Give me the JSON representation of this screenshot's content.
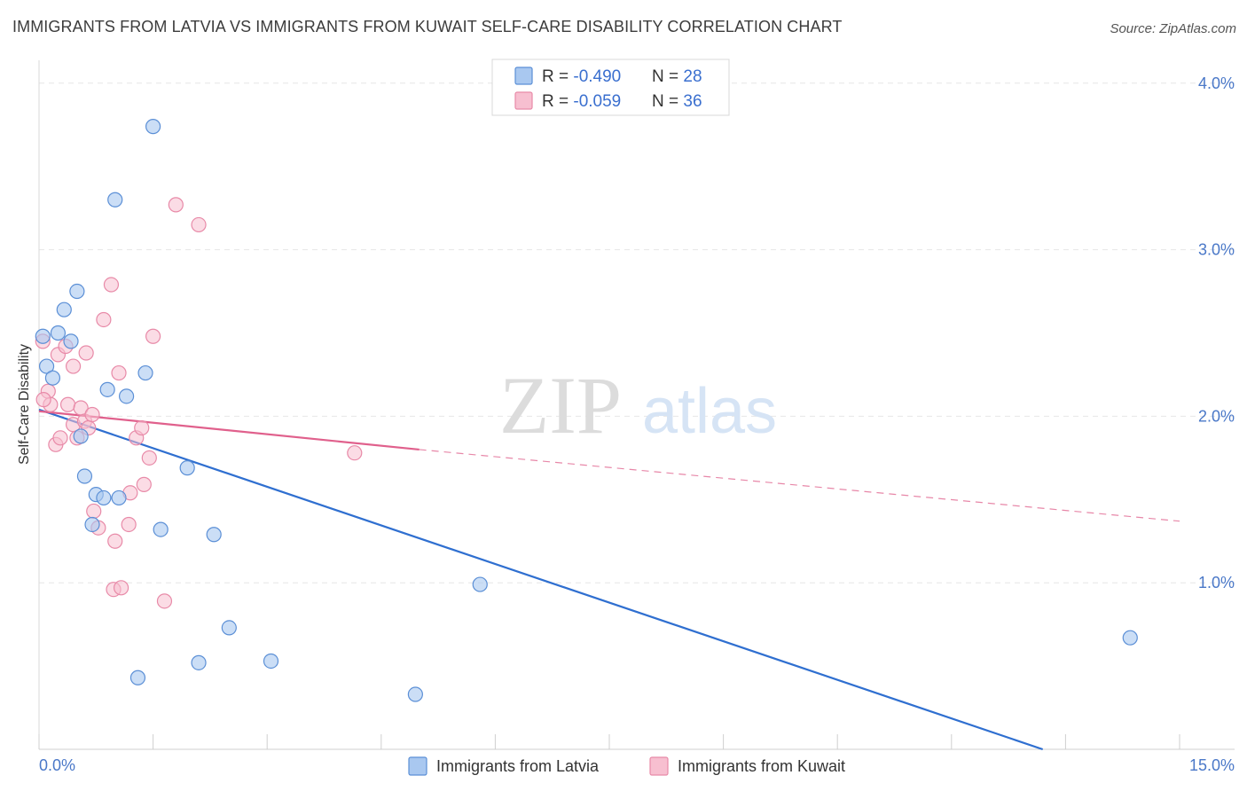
{
  "title": "IMMIGRANTS FROM LATVIA VS IMMIGRANTS FROM KUWAIT SELF-CARE DISABILITY CORRELATION CHART",
  "source": "Source: ZipAtlas.com",
  "watermark": {
    "zip": "ZIP",
    "atlas": "atlas"
  },
  "colors": {
    "latvia_fill": "#a9c8f0",
    "latvia_stroke": "#5b8fd6",
    "latvia_line": "#2f6fd0",
    "kuwait_fill": "#f7bfd0",
    "kuwait_stroke": "#e88aa8",
    "kuwait_line": "#e0608c",
    "tick_text": "#4a78c8",
    "grid": "#e6e6e6"
  },
  "legend": {
    "rows": [
      {
        "r_label": "R = ",
        "r_value": "-0.490",
        "n_label": "N = ",
        "n_value": "28"
      },
      {
        "r_label": "R = ",
        "r_value": "-0.059",
        "n_label": "N = ",
        "n_value": "36"
      }
    ]
  },
  "chart_data": {
    "type": "scatter",
    "title": "IMMIGRANTS FROM LATVIA VS IMMIGRANTS FROM KUWAIT SELF-CARE DISABILITY CORRELATION CHART",
    "xlabel": "",
    "ylabel": "Self-Care Disability",
    "xlim": [
      0,
      15
    ],
    "ylim": [
      0,
      4.1
    ],
    "x_tick_labels": [
      "0.0%",
      "15.0%"
    ],
    "y_ticks": [
      1.0,
      2.0,
      3.0,
      4.0
    ],
    "y_tick_labels": [
      "1.0%",
      "2.0%",
      "3.0%",
      "4.0%"
    ],
    "grid": "horizontal dashed",
    "legend_position": "top-center",
    "series": [
      {
        "name": "Immigrants from Latvia",
        "points": [
          [
            0.05,
            2.48
          ],
          [
            0.1,
            2.3
          ],
          [
            0.18,
            2.23
          ],
          [
            0.25,
            2.5
          ],
          [
            0.33,
            2.64
          ],
          [
            0.42,
            2.45
          ],
          [
            0.5,
            2.75
          ],
          [
            0.55,
            1.88
          ],
          [
            0.6,
            1.64
          ],
          [
            0.75,
            1.53
          ],
          [
            0.7,
            1.35
          ],
          [
            0.85,
            1.51
          ],
          [
            0.9,
            2.16
          ],
          [
            1.0,
            3.3
          ],
          [
            1.05,
            1.51
          ],
          [
            1.15,
            2.12
          ],
          [
            1.4,
            2.26
          ],
          [
            1.5,
            3.74
          ],
          [
            1.6,
            1.32
          ],
          [
            1.95,
            1.69
          ],
          [
            1.3,
            0.43
          ],
          [
            2.1,
            0.52
          ],
          [
            2.3,
            1.29
          ],
          [
            2.5,
            0.73
          ],
          [
            3.05,
            0.53
          ],
          [
            5.8,
            0.99
          ],
          [
            4.95,
            0.33
          ],
          [
            14.35,
            0.67
          ]
        ],
        "trend": {
          "x": [
            0.0,
            13.2
          ],
          "y": [
            2.04,
            0.0
          ],
          "style": "solid"
        }
      },
      {
        "name": "Immigrants from Kuwait",
        "points": [
          [
            0.05,
            2.45
          ],
          [
            0.12,
            2.15
          ],
          [
            0.15,
            2.07
          ],
          [
            0.22,
            1.83
          ],
          [
            0.28,
            1.87
          ],
          [
            0.25,
            2.37
          ],
          [
            0.35,
            2.42
          ],
          [
            0.38,
            2.07
          ],
          [
            0.45,
            2.3
          ],
          [
            0.45,
            1.95
          ],
          [
            0.5,
            1.87
          ],
          [
            0.55,
            2.05
          ],
          [
            0.6,
            1.97
          ],
          [
            0.62,
            2.38
          ],
          [
            0.65,
            1.93
          ],
          [
            0.7,
            2.01
          ],
          [
            0.72,
            1.43
          ],
          [
            0.78,
            1.33
          ],
          [
            0.85,
            2.58
          ],
          [
            0.95,
            2.79
          ],
          [
            0.98,
            0.96
          ],
          [
            1.0,
            1.25
          ],
          [
            1.05,
            2.26
          ],
          [
            1.08,
            0.97
          ],
          [
            1.18,
            1.35
          ],
          [
            1.2,
            1.54
          ],
          [
            1.28,
            1.87
          ],
          [
            1.35,
            1.93
          ],
          [
            1.38,
            1.59
          ],
          [
            1.45,
            1.75
          ],
          [
            1.5,
            2.48
          ],
          [
            1.65,
            0.89
          ],
          [
            1.8,
            3.27
          ],
          [
            2.1,
            3.15
          ],
          [
            4.15,
            1.78
          ],
          [
            0.06,
            2.1
          ]
        ],
        "trend": {
          "x": [
            0.0,
            5.0
          ],
          "y": [
            2.03,
            1.8
          ],
          "style": "solid",
          "extension": {
            "x": [
              5.0,
              15.0
            ],
            "y": [
              1.8,
              1.37
            ],
            "style": "dashed"
          }
        }
      }
    ]
  }
}
